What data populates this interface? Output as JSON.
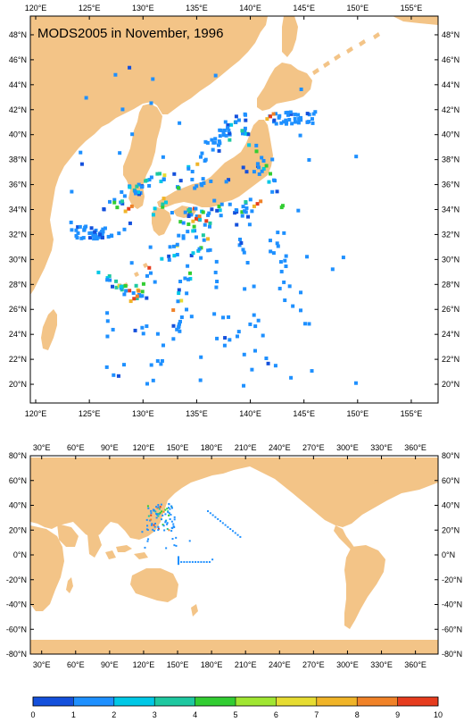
{
  "colors": {
    "land": "#F3C487",
    "ocean": "#FFFFFF",
    "frame": "#000000",
    "colorbar": [
      "#1450DC",
      "#1E90FF",
      "#00C8E6",
      "#1EC8A0",
      "#32CD32",
      "#A0E632",
      "#E6DC32",
      "#F0B428",
      "#F08228",
      "#E63C1E"
    ]
  },
  "top_map": {
    "title": "MODS2005 in November, 1996",
    "lon_labels": [
      "120°E",
      "125°E",
      "130°E",
      "135°E",
      "140°E",
      "145°E",
      "150°E",
      "155°E"
    ],
    "lat_labels": [
      "20°N",
      "22°N",
      "24°N",
      "26°N",
      "28°N",
      "30°N",
      "32°N",
      "34°N",
      "36°N",
      "38°N",
      "40°N",
      "42°N",
      "44°N",
      "46°N",
      "48°N"
    ],
    "lon_range": [
      119.5,
      157.5
    ],
    "lat_range": [
      18.5,
      49.5
    ]
  },
  "bottom_map": {
    "lon_labels": [
      "30°E",
      "60°E",
      "90°E",
      "120°E",
      "150°E",
      "180°E",
      "210°E",
      "240°E",
      "270°E",
      "300°E",
      "330°E",
      "360°E"
    ],
    "lat_labels": [
      "-80°N",
      "-60°N",
      "-40°N",
      "-20°N",
      "0°N",
      "20°N",
      "40°N",
      "60°N",
      "80°N"
    ],
    "lon_range": [
      20,
      380
    ],
    "lat_range": [
      -80,
      80
    ]
  },
  "colorbar": {
    "ticks": [
      "0",
      "1",
      "2",
      "3",
      "4",
      "5",
      "6",
      "7",
      "8",
      "9",
      "10"
    ]
  }
}
